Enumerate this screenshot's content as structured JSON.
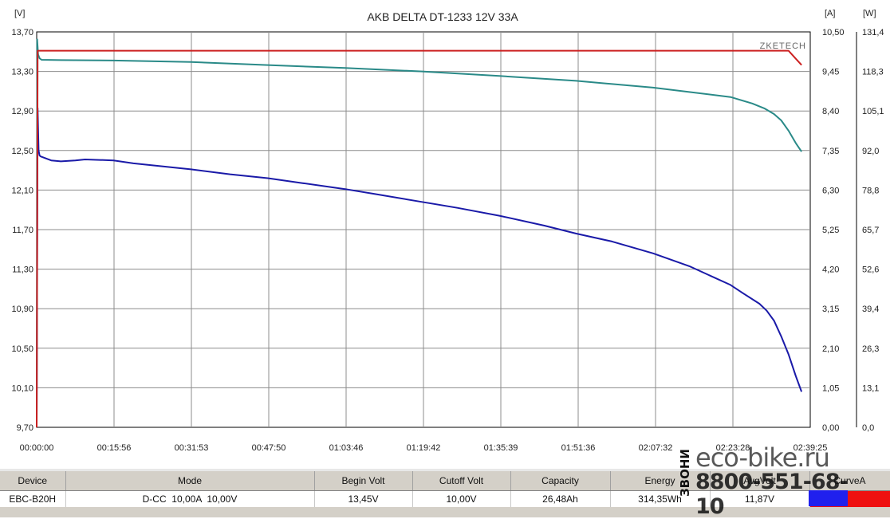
{
  "chart_data": {
    "type": "line",
    "title": "AKB DELTA DT-1233 12V 33A",
    "watermark": "ZKETECH",
    "units": {
      "left": "[V]",
      "right": "[A]",
      "far_right": "[W]"
    },
    "left_axis": {
      "ylim": [
        9.7,
        13.7
      ],
      "ticks": [
        "13,70",
        "13,30",
        "12,90",
        "12,50",
        "12,10",
        "11,70",
        "11,30",
        "10,90",
        "10,50",
        "10,10",
        "9,70"
      ]
    },
    "right_axis": {
      "ylim": [
        0,
        10.5
      ],
      "ticks": [
        "10,50",
        "9,45",
        "8,40",
        "7,35",
        "6,30",
        "5,25",
        "4,20",
        "3,15",
        "2,10",
        "1,05",
        "0,00"
      ]
    },
    "far_right_axis": {
      "ylim": [
        0,
        131.4
      ],
      "ticks": [
        "131,4",
        "118,3",
        "105,1",
        "92,0",
        "78,8",
        "65,7",
        "52,6",
        "39,4",
        "26,3",
        "13,1",
        "0,0"
      ]
    },
    "x_axis": {
      "xlim": [
        0,
        160
      ],
      "unit": "minutes",
      "ticks": [
        "00:00:00",
        "00:15:56",
        "00:31:53",
        "00:47:50",
        "01:03:46",
        "01:19:42",
        "01:35:39",
        "01:51:36",
        "02:07:32",
        "02:23:28",
        "02:39:25"
      ]
    },
    "grid": true,
    "series": [
      {
        "axis": "left",
        "color": "#1a1aa8",
        "x": [
          0,
          0.2,
          0.4,
          0.6,
          0.8,
          3,
          5,
          8,
          10,
          15.9,
          20,
          31.9,
          40,
          47.8,
          55,
          63.8,
          70,
          79.7,
          87,
          95.7,
          105,
          111.6,
          119,
          127.5,
          135,
          143.5,
          146,
          149.5,
          151,
          152.5,
          154,
          155.5,
          157,
          158.2
        ],
        "y": [
          9.7,
          12.93,
          12.5,
          12.45,
          12.44,
          12.4,
          12.39,
          12.4,
          12.41,
          12.4,
          12.37,
          12.31,
          12.26,
          12.22,
          12.17,
          12.11,
          12.06,
          11.98,
          11.92,
          11.84,
          11.74,
          11.66,
          11.58,
          11.46,
          11.33,
          11.14,
          11.06,
          10.95,
          10.88,
          10.78,
          10.62,
          10.44,
          10.22,
          10.06
        ]
      },
      {
        "axis": "right",
        "color": "#2a8a88",
        "x": [
          0,
          0.1,
          0.3,
          0.6,
          1,
          5,
          15.9,
          31.9,
          47.8,
          63.8,
          79.7,
          95.7,
          111.6,
          127.5,
          143.5,
          148,
          150.5,
          152.5,
          154,
          155.5,
          157,
          158.2
        ],
        "y": [
          0.0,
          10.3,
          9.9,
          9.8,
          9.76,
          9.75,
          9.74,
          9.7,
          9.62,
          9.54,
          9.45,
          9.33,
          9.2,
          9.02,
          8.77,
          8.6,
          8.47,
          8.32,
          8.15,
          7.88,
          7.55,
          7.32
        ]
      },
      {
        "axis": "right",
        "color": "#cc2020",
        "x": [
          0,
          0.2,
          0.5,
          155.5,
          158.2
        ],
        "y": [
          0.0,
          10.0,
          10.0,
          10.0,
          9.62
        ]
      }
    ]
  },
  "table": {
    "headers": [
      "Device",
      "Mode",
      "Begin Volt",
      "Cutoff Volt",
      "Capacity",
      "Energy",
      "AvgVolt",
      "CurveA"
    ],
    "row": [
      "EBC-B20H",
      "D-CC  10,00A  10,00V",
      "13,45V",
      "10,00V",
      "26,48Ah",
      "314,35Wh",
      "11,87V",
      ""
    ],
    "swatch_colors": {
      "avg": "#2020ee",
      "curve": "#ee1010"
    }
  },
  "promo": {
    "side": "ЗВОНИ",
    "site": "eco-bike.ru",
    "phone": "8800-551-68-10"
  }
}
